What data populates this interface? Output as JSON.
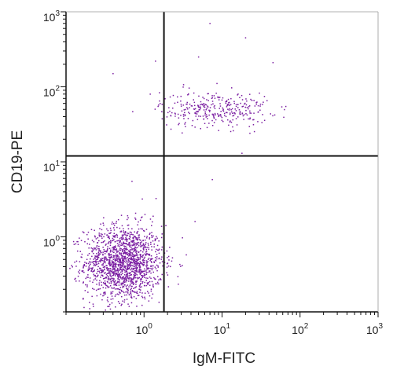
{
  "chart_data": {
    "type": "scatter",
    "title": "",
    "xlabel": "IgM-FITC",
    "ylabel": "CD19-PE",
    "x_scale": "log",
    "y_scale": "log",
    "xlim": [
      0.1,
      1000
    ],
    "ylim": [
      0.1,
      1000
    ],
    "grid": false,
    "point_color": "#7b1fa2",
    "gate_lines": {
      "x": 1.8,
      "y": 12
    },
    "x_ticks": [
      {
        "value": 1,
        "base": "10",
        "exp": "0"
      },
      {
        "value": 10,
        "base": "10",
        "exp": "1"
      },
      {
        "value": 100,
        "base": "10",
        "exp": "2"
      },
      {
        "value": 1000,
        "base": "10",
        "exp": "3"
      }
    ],
    "y_ticks": [
      {
        "value": 1,
        "base": "10",
        "exp": "0"
      },
      {
        "value": 10,
        "base": "10",
        "exp": "1"
      },
      {
        "value": 100,
        "base": "10",
        "exp": "2"
      },
      {
        "value": 1000,
        "base": "10",
        "exp": "3"
      }
    ],
    "populations": [
      {
        "name": "",
        "center_x": 0.55,
        "center_y": 0.45,
        "spread_x_decades": 0.25,
        "spread_y_decades": 0.25,
        "count": 1600
      },
      {
        "name": "",
        "center_x": 8.0,
        "center_y": 50,
        "spread_x_decades": 0.35,
        "spread_y_decades": 0.12,
        "count": 330
      }
    ],
    "outliers": [
      {
        "x": 7.0,
        "y": 700
      },
      {
        "x": 20,
        "y": 450
      },
      {
        "x": 1.4,
        "y": 220
      },
      {
        "x": 5.0,
        "y": 250
      },
      {
        "x": 45,
        "y": 210
      },
      {
        "x": 0.95,
        "y": 3.2
      },
      {
        "x": 0.7,
        "y": 5.5
      },
      {
        "x": 7.5,
        "y": 5.8
      },
      {
        "x": 4.5,
        "y": 1.6
      },
      {
        "x": 0.4,
        "y": 150
      },
      {
        "x": 1.2,
        "y": 80
      },
      {
        "x": 18,
        "y": 13
      }
    ]
  }
}
